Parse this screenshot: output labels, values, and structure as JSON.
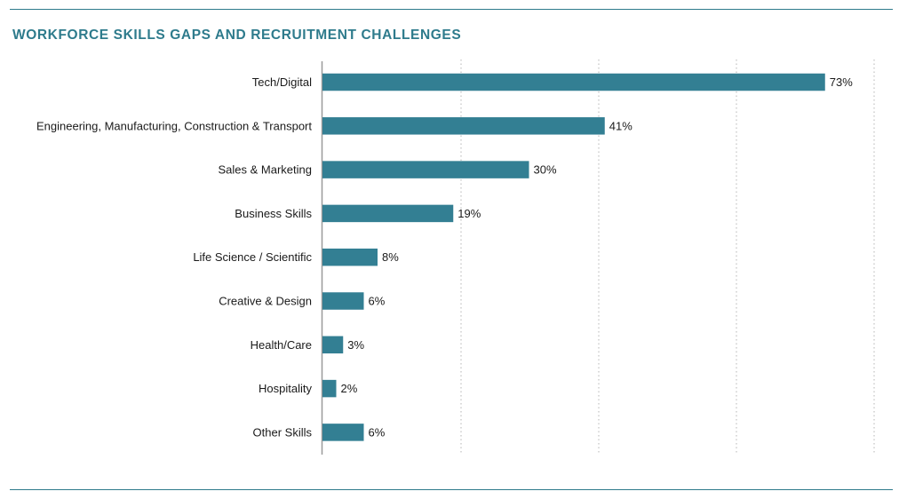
{
  "chart_data": {
    "type": "bar",
    "orientation": "horizontal",
    "title": "WORKFORCE SKILLS GAPS AND RECRUITMENT CHALLENGES",
    "categories": [
      "Tech/Digital",
      "Engineering, Manufacturing, Construction & Transport",
      "Sales & Marketing",
      "Business Skills",
      "Life Science / Scientific",
      "Creative & Design",
      "Health/Care",
      "Hospitality",
      "Other Skills"
    ],
    "values": [
      73,
      41,
      30,
      19,
      8,
      6,
      3,
      2,
      6
    ],
    "value_labels": [
      "73%",
      "41%",
      "30%",
      "19%",
      "8%",
      "6%",
      "3%",
      "2%",
      "6%"
    ],
    "xlim": [
      0,
      80
    ],
    "grid": true,
    "bar_color": "#337f93",
    "accent_color": "#2e7b8c"
  }
}
